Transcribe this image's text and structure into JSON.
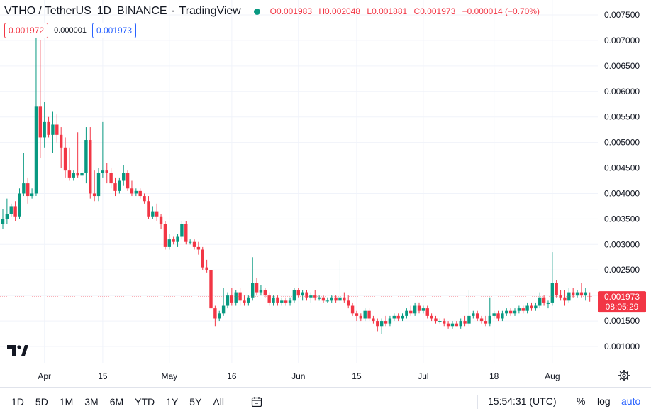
{
  "header": {
    "symbol": "VTHO / TetherUS",
    "interval": "1D",
    "exchange": "BINANCE",
    "brand": "TradingView",
    "ohlc": {
      "o_label": "O",
      "o": "0.001983",
      "h_label": "H",
      "h": "0.002048",
      "l_label": "L",
      "l": "0.001881",
      "c_label": "C",
      "c": "0.001973",
      "change": "−0.000014 (−0.70%)"
    }
  },
  "quote": {
    "bid": "0.001972",
    "spread": "0.000001",
    "ask": "0.001973"
  },
  "last_price": {
    "value": "0.001973",
    "countdown": "08:05:29"
  },
  "toolbar": {
    "ranges": [
      "1D",
      "5D",
      "1M",
      "3M",
      "6M",
      "YTD",
      "1Y",
      "5Y",
      "All"
    ],
    "time": "15:54:31 (UTC)",
    "percent_label": "%",
    "log_label": "log",
    "auto_label": "auto"
  },
  "colors": {
    "up": "#089981",
    "down": "#f23645",
    "accent": "#2962ff",
    "grid": "#f0f3fa"
  },
  "chart_data": {
    "type": "candlestick",
    "y_ticks": [
      "0.001000",
      "0.001500",
      "0.002000",
      "0.002500",
      "0.003000",
      "0.003500",
      "0.004000",
      "0.004500",
      "0.005000",
      "0.005500",
      "0.006000",
      "0.006500",
      "0.007000",
      "0.007500"
    ],
    "x_ticks": [
      {
        "label": "Apr",
        "index": 10
      },
      {
        "label": "15",
        "index": 24
      },
      {
        "label": "May",
        "index": 40
      },
      {
        "label": "16",
        "index": 55
      },
      {
        "label": "Jun",
        "index": 71
      },
      {
        "label": "15",
        "index": 85
      },
      {
        "label": "Jul",
        "index": 101
      },
      {
        "label": "18",
        "index": 118
      },
      {
        "label": "Aug",
        "index": 132
      }
    ],
    "candles": [
      {
        "o": 0.0034,
        "h": 0.0037,
        "l": 0.0033,
        "c": 0.0035
      },
      {
        "o": 0.0035,
        "h": 0.0039,
        "l": 0.0034,
        "c": 0.0036
      },
      {
        "o": 0.0036,
        "h": 0.0038,
        "l": 0.00355,
        "c": 0.00375
      },
      {
        "o": 0.00375,
        "h": 0.00385,
        "l": 0.00345,
        "c": 0.00355
      },
      {
        "o": 0.00355,
        "h": 0.0041,
        "l": 0.0035,
        "c": 0.004
      },
      {
        "o": 0.004,
        "h": 0.0048,
        "l": 0.00395,
        "c": 0.0042
      },
      {
        "o": 0.0042,
        "h": 0.0043,
        "l": 0.0038,
        "c": 0.00395
      },
      {
        "o": 0.00395,
        "h": 0.0041,
        "l": 0.0039,
        "c": 0.004
      },
      {
        "o": 0.004,
        "h": 0.0072,
        "l": 0.00395,
        "c": 0.0057
      },
      {
        "o": 0.0057,
        "h": 0.007,
        "l": 0.0047,
        "c": 0.0051
      },
      {
        "o": 0.0051,
        "h": 0.0058,
        "l": 0.0049,
        "c": 0.0054
      },
      {
        "o": 0.0054,
        "h": 0.0055,
        "l": 0.0051,
        "c": 0.00515
      },
      {
        "o": 0.00515,
        "h": 0.0056,
        "l": 0.0048,
        "c": 0.00535
      },
      {
        "o": 0.00535,
        "h": 0.00555,
        "l": 0.005,
        "c": 0.00515
      },
      {
        "o": 0.00515,
        "h": 0.0053,
        "l": 0.0045,
        "c": 0.0049
      },
      {
        "o": 0.0049,
        "h": 0.0051,
        "l": 0.0043,
        "c": 0.00445
      },
      {
        "o": 0.00445,
        "h": 0.0049,
        "l": 0.00425,
        "c": 0.0043
      },
      {
        "o": 0.0043,
        "h": 0.00445,
        "l": 0.00425,
        "c": 0.0044
      },
      {
        "o": 0.0044,
        "h": 0.0052,
        "l": 0.0043,
        "c": 0.00435
      },
      {
        "o": 0.00435,
        "h": 0.0045,
        "l": 0.00425,
        "c": 0.0044
      },
      {
        "o": 0.0044,
        "h": 0.0053,
        "l": 0.0042,
        "c": 0.00505
      },
      {
        "o": 0.00505,
        "h": 0.0053,
        "l": 0.0039,
        "c": 0.004
      },
      {
        "o": 0.004,
        "h": 0.00445,
        "l": 0.00385,
        "c": 0.00395
      },
      {
        "o": 0.00395,
        "h": 0.0045,
        "l": 0.00385,
        "c": 0.0044
      },
      {
        "o": 0.0044,
        "h": 0.0054,
        "l": 0.0043,
        "c": 0.00445
      },
      {
        "o": 0.00445,
        "h": 0.0046,
        "l": 0.0042,
        "c": 0.0044
      },
      {
        "o": 0.0044,
        "h": 0.0045,
        "l": 0.0041,
        "c": 0.0042
      },
      {
        "o": 0.0042,
        "h": 0.0043,
        "l": 0.00395,
        "c": 0.00405
      },
      {
        "o": 0.00405,
        "h": 0.0043,
        "l": 0.004,
        "c": 0.00425
      },
      {
        "o": 0.00425,
        "h": 0.00455,
        "l": 0.00415,
        "c": 0.0044
      },
      {
        "o": 0.0044,
        "h": 0.00445,
        "l": 0.00405,
        "c": 0.0041
      },
      {
        "o": 0.0041,
        "h": 0.00425,
        "l": 0.00395,
        "c": 0.004
      },
      {
        "o": 0.004,
        "h": 0.0041,
        "l": 0.00395,
        "c": 0.00405
      },
      {
        "o": 0.00405,
        "h": 0.0041,
        "l": 0.0039,
        "c": 0.00395
      },
      {
        "o": 0.00395,
        "h": 0.004,
        "l": 0.0038,
        "c": 0.00385
      },
      {
        "o": 0.00385,
        "h": 0.00395,
        "l": 0.0035,
        "c": 0.00355
      },
      {
        "o": 0.00355,
        "h": 0.00375,
        "l": 0.0035,
        "c": 0.00365
      },
      {
        "o": 0.00365,
        "h": 0.0038,
        "l": 0.00345,
        "c": 0.00355
      },
      {
        "o": 0.00355,
        "h": 0.0036,
        "l": 0.0033,
        "c": 0.0034
      },
      {
        "o": 0.0034,
        "h": 0.00345,
        "l": 0.0029,
        "c": 0.00295
      },
      {
        "o": 0.00295,
        "h": 0.0032,
        "l": 0.0029,
        "c": 0.0031
      },
      {
        "o": 0.0031,
        "h": 0.00315,
        "l": 0.003,
        "c": 0.00305
      },
      {
        "o": 0.00305,
        "h": 0.0032,
        "l": 0.00295,
        "c": 0.00315
      },
      {
        "o": 0.00315,
        "h": 0.00345,
        "l": 0.0031,
        "c": 0.0034
      },
      {
        "o": 0.0034,
        "h": 0.00345,
        "l": 0.003,
        "c": 0.00305
      },
      {
        "o": 0.00305,
        "h": 0.0031,
        "l": 0.003,
        "c": 0.00305
      },
      {
        "o": 0.00305,
        "h": 0.0031,
        "l": 0.0029,
        "c": 0.00295
      },
      {
        "o": 0.00295,
        "h": 0.00305,
        "l": 0.0028,
        "c": 0.0029
      },
      {
        "o": 0.0029,
        "h": 0.00295,
        "l": 0.0025,
        "c": 0.00255
      },
      {
        "o": 0.00255,
        "h": 0.0027,
        "l": 0.00245,
        "c": 0.0025
      },
      {
        "o": 0.0025,
        "h": 0.00255,
        "l": 0.0016,
        "c": 0.00175
      },
      {
        "o": 0.00175,
        "h": 0.0018,
        "l": 0.0014,
        "c": 0.00155
      },
      {
        "o": 0.00155,
        "h": 0.0017,
        "l": 0.0015,
        "c": 0.00165
      },
      {
        "o": 0.00165,
        "h": 0.00215,
        "l": 0.0016,
        "c": 0.0018
      },
      {
        "o": 0.0018,
        "h": 0.00205,
        "l": 0.00175,
        "c": 0.002
      },
      {
        "o": 0.002,
        "h": 0.00215,
        "l": 0.0018,
        "c": 0.00185
      },
      {
        "o": 0.00185,
        "h": 0.0021,
        "l": 0.0018,
        "c": 0.00205
      },
      {
        "o": 0.00205,
        "h": 0.00215,
        "l": 0.0018,
        "c": 0.0019
      },
      {
        "o": 0.0019,
        "h": 0.002,
        "l": 0.0018,
        "c": 0.00185
      },
      {
        "o": 0.00185,
        "h": 0.002,
        "l": 0.0018,
        "c": 0.00195
      },
      {
        "o": 0.00195,
        "h": 0.00275,
        "l": 0.0019,
        "c": 0.00225
      },
      {
        "o": 0.00225,
        "h": 0.00235,
        "l": 0.002,
        "c": 0.00205
      },
      {
        "o": 0.00205,
        "h": 0.0022,
        "l": 0.002,
        "c": 0.0021
      },
      {
        "o": 0.0021,
        "h": 0.00215,
        "l": 0.00195,
        "c": 0.002
      },
      {
        "o": 0.002,
        "h": 0.00205,
        "l": 0.0018,
        "c": 0.00185
      },
      {
        "o": 0.00185,
        "h": 0.002,
        "l": 0.0018,
        "c": 0.00195
      },
      {
        "o": 0.00195,
        "h": 0.002,
        "l": 0.0018,
        "c": 0.00185
      },
      {
        "o": 0.00185,
        "h": 0.00195,
        "l": 0.0018,
        "c": 0.0019
      },
      {
        "o": 0.0019,
        "h": 0.00195,
        "l": 0.0018,
        "c": 0.00185
      },
      {
        "o": 0.00185,
        "h": 0.00195,
        "l": 0.0018,
        "c": 0.0019
      },
      {
        "o": 0.0019,
        "h": 0.00215,
        "l": 0.00185,
        "c": 0.0021
      },
      {
        "o": 0.0021,
        "h": 0.00215,
        "l": 0.00195,
        "c": 0.002
      },
      {
        "o": 0.002,
        "h": 0.0021,
        "l": 0.0019,
        "c": 0.00205
      },
      {
        "o": 0.00205,
        "h": 0.0021,
        "l": 0.0019,
        "c": 0.00195
      },
      {
        "o": 0.00195,
        "h": 0.00205,
        "l": 0.00185,
        "c": 0.002
      },
      {
        "o": 0.002,
        "h": 0.0021,
        "l": 0.0019,
        "c": 0.00195
      },
      {
        "o": 0.00195,
        "h": 0.002,
        "l": 0.0019,
        "c": 0.00195
      },
      {
        "o": 0.00195,
        "h": 0.002,
        "l": 0.00185,
        "c": 0.0019
      },
      {
        "o": 0.0019,
        "h": 0.00195,
        "l": 0.00185,
        "c": 0.0019
      },
      {
        "o": 0.0019,
        "h": 0.002,
        "l": 0.00185,
        "c": 0.00195
      },
      {
        "o": 0.00195,
        "h": 0.002,
        "l": 0.00185,
        "c": 0.0019
      },
      {
        "o": 0.0019,
        "h": 0.0027,
        "l": 0.00185,
        "c": 0.00195
      },
      {
        "o": 0.00195,
        "h": 0.00205,
        "l": 0.00185,
        "c": 0.0019
      },
      {
        "o": 0.0019,
        "h": 0.002,
        "l": 0.00175,
        "c": 0.0018
      },
      {
        "o": 0.0018,
        "h": 0.00185,
        "l": 0.0016,
        "c": 0.00165
      },
      {
        "o": 0.00165,
        "h": 0.0017,
        "l": 0.0015,
        "c": 0.0016
      },
      {
        "o": 0.0016,
        "h": 0.00165,
        "l": 0.0015,
        "c": 0.00155
      },
      {
        "o": 0.00155,
        "h": 0.00175,
        "l": 0.0015,
        "c": 0.0017
      },
      {
        "o": 0.0017,
        "h": 0.00175,
        "l": 0.0015,
        "c": 0.00155
      },
      {
        "o": 0.00155,
        "h": 0.0016,
        "l": 0.00145,
        "c": 0.0015
      },
      {
        "o": 0.0015,
        "h": 0.00155,
        "l": 0.0013,
        "c": 0.0014
      },
      {
        "o": 0.0014,
        "h": 0.00155,
        "l": 0.00125,
        "c": 0.0015
      },
      {
        "o": 0.0015,
        "h": 0.0016,
        "l": 0.0014,
        "c": 0.00145
      },
      {
        "o": 0.00145,
        "h": 0.0016,
        "l": 0.0014,
        "c": 0.00155
      },
      {
        "o": 0.00155,
        "h": 0.00165,
        "l": 0.0015,
        "c": 0.0016
      },
      {
        "o": 0.0016,
        "h": 0.00165,
        "l": 0.0015,
        "c": 0.00155
      },
      {
        "o": 0.00155,
        "h": 0.00165,
        "l": 0.0015,
        "c": 0.0016
      },
      {
        "o": 0.0016,
        "h": 0.00175,
        "l": 0.00155,
        "c": 0.0017
      },
      {
        "o": 0.0017,
        "h": 0.0018,
        "l": 0.0016,
        "c": 0.00165
      },
      {
        "o": 0.00165,
        "h": 0.00185,
        "l": 0.0016,
        "c": 0.0018
      },
      {
        "o": 0.0018,
        "h": 0.00185,
        "l": 0.00165,
        "c": 0.0017
      },
      {
        "o": 0.0017,
        "h": 0.0018,
        "l": 0.00165,
        "c": 0.00175
      },
      {
        "o": 0.00175,
        "h": 0.0018,
        "l": 0.00155,
        "c": 0.0016
      },
      {
        "o": 0.0016,
        "h": 0.00165,
        "l": 0.0015,
        "c": 0.00155
      },
      {
        "o": 0.00155,
        "h": 0.0016,
        "l": 0.00145,
        "c": 0.0015
      },
      {
        "o": 0.0015,
        "h": 0.00155,
        "l": 0.00145,
        "c": 0.0015
      },
      {
        "o": 0.0015,
        "h": 0.00155,
        "l": 0.0014,
        "c": 0.00145
      },
      {
        "o": 0.00145,
        "h": 0.0015,
        "l": 0.00135,
        "c": 0.0014
      },
      {
        "o": 0.0014,
        "h": 0.0015,
        "l": 0.00135,
        "c": 0.00145
      },
      {
        "o": 0.00145,
        "h": 0.0015,
        "l": 0.0014,
        "c": 0.0014
      },
      {
        "o": 0.0014,
        "h": 0.00155,
        "l": 0.00135,
        "c": 0.0015
      },
      {
        "o": 0.0015,
        "h": 0.0016,
        "l": 0.0014,
        "c": 0.00145
      },
      {
        "o": 0.00145,
        "h": 0.0021,
        "l": 0.0014,
        "c": 0.0016
      },
      {
        "o": 0.0016,
        "h": 0.0017,
        "l": 0.00155,
        "c": 0.00165
      },
      {
        "o": 0.00165,
        "h": 0.0017,
        "l": 0.0015,
        "c": 0.00155
      },
      {
        "o": 0.00155,
        "h": 0.0016,
        "l": 0.00145,
        "c": 0.0015
      },
      {
        "o": 0.0015,
        "h": 0.0016,
        "l": 0.0014,
        "c": 0.00145
      },
      {
        "o": 0.00145,
        "h": 0.00195,
        "l": 0.0014,
        "c": 0.0016
      },
      {
        "o": 0.0016,
        "h": 0.0017,
        "l": 0.00155,
        "c": 0.00165
      },
      {
        "o": 0.00165,
        "h": 0.0017,
        "l": 0.0015,
        "c": 0.00155
      },
      {
        "o": 0.00155,
        "h": 0.0017,
        "l": 0.0015,
        "c": 0.00165
      },
      {
        "o": 0.00165,
        "h": 0.00175,
        "l": 0.0016,
        "c": 0.0017
      },
      {
        "o": 0.0017,
        "h": 0.00175,
        "l": 0.0016,
        "c": 0.00165
      },
      {
        "o": 0.00165,
        "h": 0.00175,
        "l": 0.0016,
        "c": 0.0017
      },
      {
        "o": 0.0017,
        "h": 0.0018,
        "l": 0.00165,
        "c": 0.00175
      },
      {
        "o": 0.00175,
        "h": 0.0018,
        "l": 0.00165,
        "c": 0.0017
      },
      {
        "o": 0.0017,
        "h": 0.00185,
        "l": 0.00165,
        "c": 0.0018
      },
      {
        "o": 0.0018,
        "h": 0.00185,
        "l": 0.0017,
        "c": 0.00175
      },
      {
        "o": 0.00175,
        "h": 0.00185,
        "l": 0.0017,
        "c": 0.0018
      },
      {
        "o": 0.0018,
        "h": 0.00205,
        "l": 0.00175,
        "c": 0.00195
      },
      {
        "o": 0.00195,
        "h": 0.002,
        "l": 0.0018,
        "c": 0.00185
      },
      {
        "o": 0.00185,
        "h": 0.0019,
        "l": 0.00175,
        "c": 0.00185
      },
      {
        "o": 0.00185,
        "h": 0.00285,
        "l": 0.0018,
        "c": 0.00225
      },
      {
        "o": 0.00225,
        "h": 0.0023,
        "l": 0.00195,
        "c": 0.002
      },
      {
        "o": 0.002,
        "h": 0.0021,
        "l": 0.0019,
        "c": 0.00195
      },
      {
        "o": 0.00195,
        "h": 0.0021,
        "l": 0.0018,
        "c": 0.0019
      },
      {
        "o": 0.0019,
        "h": 0.00215,
        "l": 0.00185,
        "c": 0.00205
      },
      {
        "o": 0.00205,
        "h": 0.00215,
        "l": 0.00195,
        "c": 0.002
      },
      {
        "o": 0.002,
        "h": 0.0021,
        "l": 0.00195,
        "c": 0.00205
      },
      {
        "o": 0.00205,
        "h": 0.00225,
        "l": 0.00195,
        "c": 0.002
      },
      {
        "o": 0.002,
        "h": 0.00215,
        "l": 0.0019,
        "c": 0.00205
      },
      {
        "o": 0.00198,
        "h": 0.00205,
        "l": 0.00188,
        "c": 0.00197
      }
    ]
  }
}
